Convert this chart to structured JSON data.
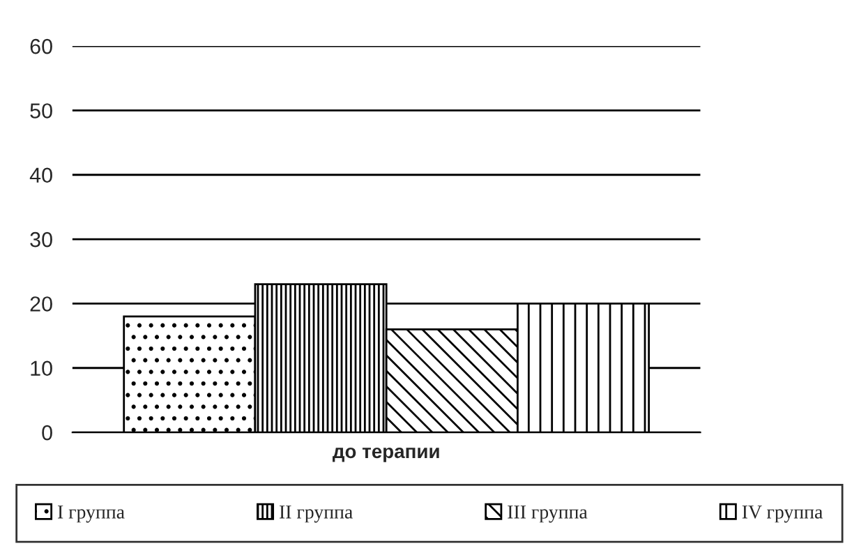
{
  "chart_data": {
    "type": "bar",
    "categories": [
      "до терапии"
    ],
    "series": [
      {
        "name": "I группа",
        "color": "#000000",
        "values": [
          18
        ]
      },
      {
        "name": "II группа",
        "color": "#000000",
        "values": [
          23
        ]
      },
      {
        "name": "III группа",
        "color": "#000000",
        "values": [
          16
        ]
      },
      {
        "name": "IV группа",
        "color": "#000000",
        "values": [
          20
        ]
      }
    ],
    "ylim": [
      0,
      60
    ],
    "yticks": [
      0,
      10,
      20,
      30,
      40,
      50,
      60
    ],
    "grid": "y",
    "legend": "bottom"
  }
}
